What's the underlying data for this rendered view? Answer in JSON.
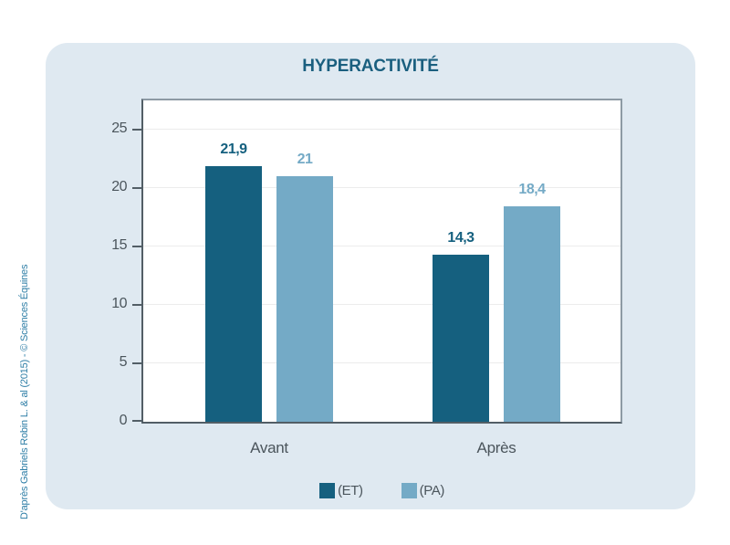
{
  "title": "HYPERACTIVITÉ",
  "credit": "D'après Gabriels Robin L. & al (2015) - © Sciences Équines",
  "colors": {
    "card_bg": "#DFE9F1",
    "series_dark": "#15607F",
    "series_light": "#74AAC6",
    "title_text": "#1A5F7F",
    "axis_text": "#4B555C",
    "credit_text": "#2E7EA6",
    "gridline": "#ECECEC",
    "tick": "#525E66"
  },
  "chart_data": {
    "type": "bar",
    "title": "HYPERACTIVITÉ",
    "categories": [
      "Avant",
      "Après"
    ],
    "series": [
      {
        "name": "(ET)",
        "color_key": "series_dark",
        "values": [
          21.9,
          14.3
        ],
        "labels": [
          "21,9",
          "14,3"
        ]
      },
      {
        "name": "(PA)",
        "color_key": "series_light",
        "values": [
          21,
          18.4
        ],
        "labels": [
          "21",
          "18,4"
        ]
      }
    ],
    "xlabel": "",
    "ylabel": "",
    "ylim": [
      0,
      25
    ],
    "yticks": [
      0,
      5,
      10,
      15,
      20,
      25
    ],
    "grid": "horizontal",
    "legend_position": "bottom"
  }
}
